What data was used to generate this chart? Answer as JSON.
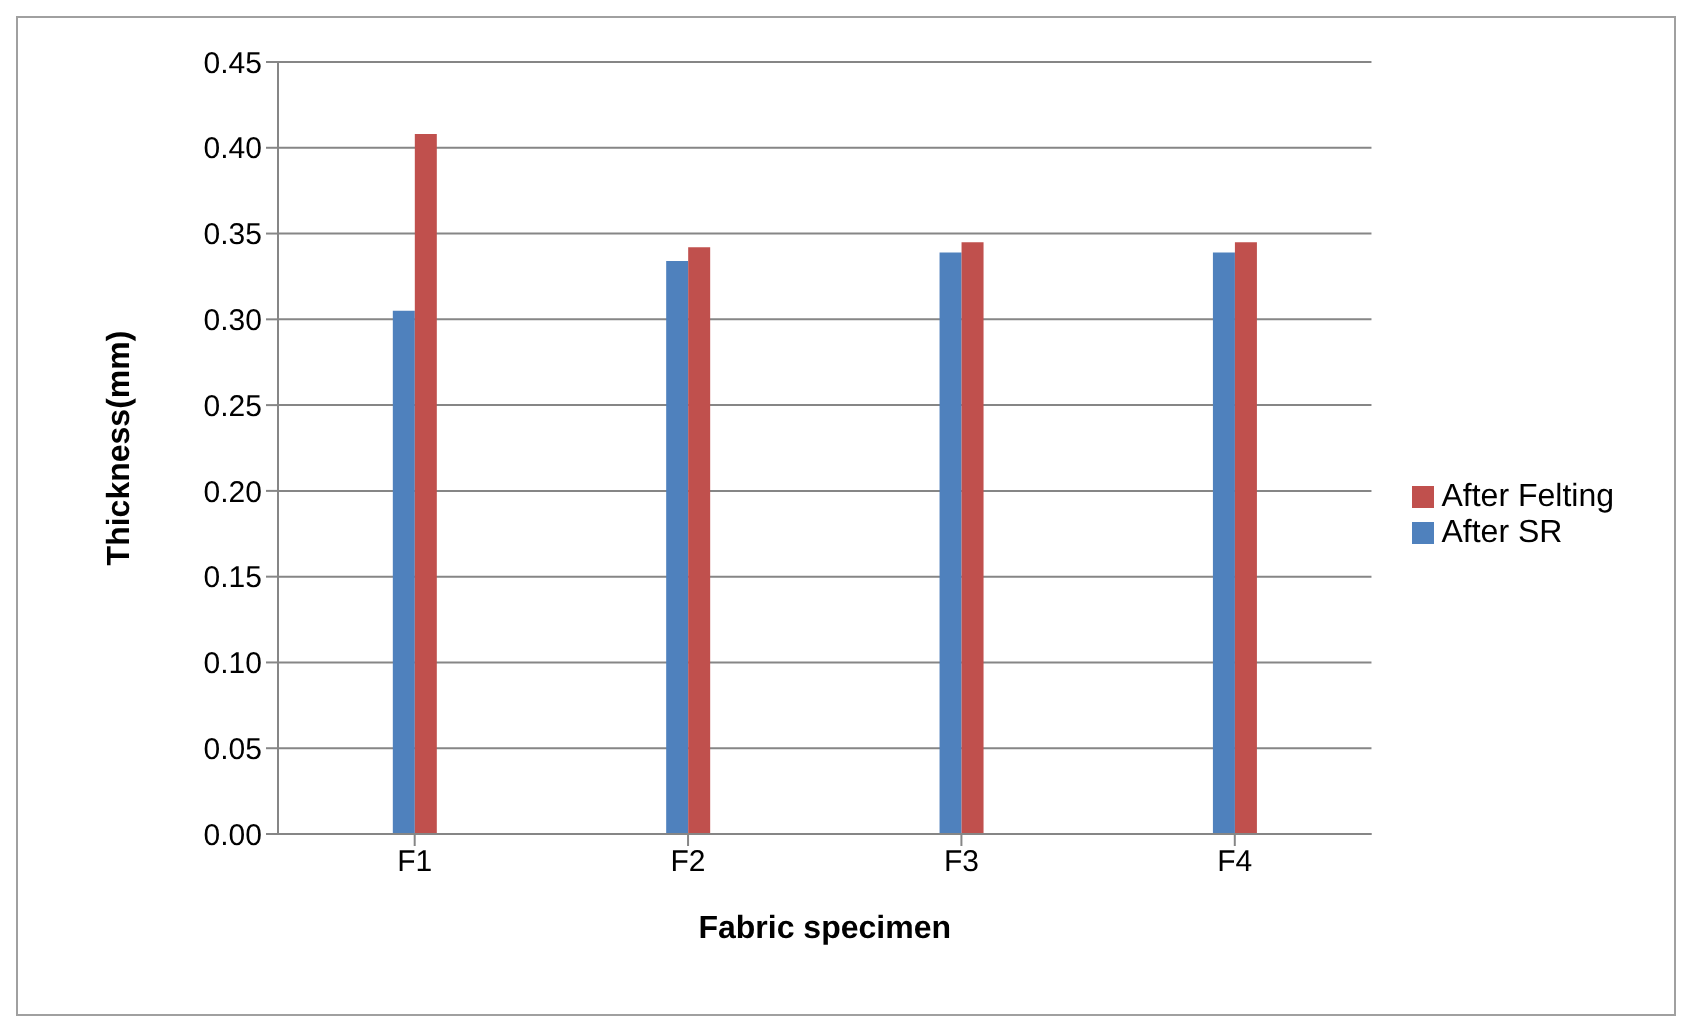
{
  "chart_data": {
    "type": "bar",
    "xlabel": "Fabric specimen",
    "ylabel": "Thickness(mm)",
    "categories": [
      "F1",
      "F2",
      "F3",
      "F4"
    ],
    "series": [
      {
        "name": "After SR",
        "color": "#4f81bd",
        "values": [
          0.305,
          0.334,
          0.339,
          0.339
        ]
      },
      {
        "name": "After Felting",
        "color": "#c0504d",
        "values": [
          0.408,
          0.342,
          0.345,
          0.345
        ]
      }
    ],
    "ylim": [
      0,
      0.45
    ],
    "yticks": [
      {
        "value": 0,
        "label": "0.00"
      },
      {
        "value": 0.05,
        "label": "0.05"
      },
      {
        "value": 0.1,
        "label": "0.10"
      },
      {
        "value": 0.15,
        "label": "0.15"
      },
      {
        "value": 0.2,
        "label": "0.20"
      },
      {
        "value": 0.25,
        "label": "0.25"
      },
      {
        "value": 0.3,
        "label": "0.30"
      },
      {
        "value": 0.35,
        "label": "0.35"
      },
      {
        "value": 0.4,
        "label": "0.40"
      },
      {
        "value": 0.45,
        "label": "0.45"
      }
    ],
    "grid": "y",
    "legend": "right"
  }
}
